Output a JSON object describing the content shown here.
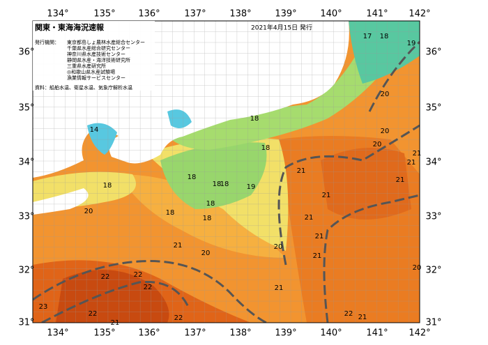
{
  "header": {
    "title": "関東・東海海況速報",
    "date": "2021年4月15日 発行"
  },
  "publishers": {
    "label": "発行機関：",
    "items": [
      "東京都島しょ農林水産総合センター",
      "千葉県水産総合研究センター",
      "神奈川県水産技術センター",
      "静岡県水産・海洋技術研究所",
      "三重県水産研究所",
      "◎和歌山県水産試験場",
      "漁業情報サービスセンター"
    ]
  },
  "source": "資料：船舶水温、衛星水温、気象庁解析水温",
  "longitude_labels": [
    "134°",
    "135°",
    "136°",
    "137°",
    "138°",
    "139°",
    "140°",
    "141°",
    "142°"
  ],
  "latitude_labels": [
    "31°",
    "32°",
    "33°",
    "34°",
    "35°",
    "36°"
  ],
  "contour_labels": [
    "17",
    "18",
    "19",
    "20",
    "20",
    "20",
    "21",
    "21",
    "21",
    "14",
    "18",
    "18",
    "18",
    "18",
    "18",
    "19",
    "21",
    "21",
    "18",
    "18",
    "18",
    "18",
    "20",
    "21",
    "21",
    "21",
    "20",
    "20",
    "21",
    "20",
    "22",
    "22",
    "22",
    "21",
    "23",
    "22",
    "22",
    "22",
    "21",
    "21"
  ]
}
